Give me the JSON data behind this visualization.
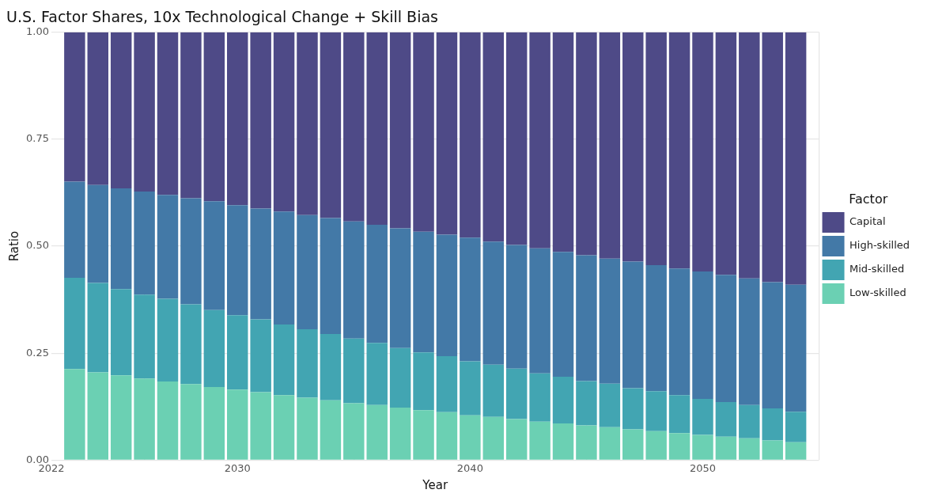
{
  "chart_data": {
    "type": "bar",
    "title": "U.S. Factor Shares, 10x Technological Change + Skill Bias",
    "xlabel": "Year",
    "ylabel": "Ratio",
    "legend_title": "Factor",
    "legend": "right",
    "stacked": true,
    "grid": true,
    "x": [
      2023,
      2024,
      2025,
      2026,
      2027,
      2028,
      2029,
      2030,
      2031,
      2032,
      2033,
      2034,
      2035,
      2036,
      2037,
      2038,
      2039,
      2040,
      2041,
      2042,
      2043,
      2044,
      2045,
      2046,
      2047,
      2048,
      2049,
      2050,
      2051,
      2052,
      2053,
      2054
    ],
    "xlim": [
      2022,
      2055
    ],
    "xticks": [
      2022,
      2030,
      2040,
      2050
    ],
    "ylim": [
      0,
      1
    ],
    "yticks": [
      {
        "value": 0,
        "label": "0.00"
      },
      {
        "value": 0.25,
        "label": "0.25"
      },
      {
        "value": 0.5,
        "label": "0.50"
      },
      {
        "value": 0.75,
        "label": "0.75"
      },
      {
        "value": 1,
        "label": "1.00"
      }
    ],
    "series": [
      {
        "name": "Low-skilled",
        "color": "#6bd0b3",
        "values": [
          0.213,
          0.205,
          0.198,
          0.191,
          0.184,
          0.178,
          0.171,
          0.165,
          0.159,
          0.152,
          0.146,
          0.14,
          0.133,
          0.129,
          0.123,
          0.117,
          0.112,
          0.105,
          0.101,
          0.096,
          0.09,
          0.086,
          0.081,
          0.077,
          0.072,
          0.068,
          0.063,
          0.059,
          0.055,
          0.051,
          0.046,
          0.042
        ]
      },
      {
        "name": "Mid-skilled",
        "color": "#42a5b2",
        "values": [
          0.213,
          0.209,
          0.202,
          0.196,
          0.193,
          0.186,
          0.18,
          0.174,
          0.17,
          0.165,
          0.16,
          0.155,
          0.151,
          0.145,
          0.139,
          0.135,
          0.131,
          0.126,
          0.122,
          0.118,
          0.113,
          0.109,
          0.104,
          0.102,
          0.096,
          0.093,
          0.089,
          0.084,
          0.081,
          0.078,
          0.075,
          0.071
        ]
      },
      {
        "name": "High-skilled",
        "color": "#4379a7",
        "values": [
          0.225,
          0.229,
          0.235,
          0.241,
          0.243,
          0.248,
          0.254,
          0.257,
          0.259,
          0.264,
          0.267,
          0.271,
          0.274,
          0.276,
          0.28,
          0.282,
          0.284,
          0.289,
          0.288,
          0.289,
          0.292,
          0.292,
          0.294,
          0.292,
          0.296,
          0.295,
          0.296,
          0.298,
          0.297,
          0.296,
          0.295,
          0.297
        ]
      },
      {
        "name": "Capital",
        "color": "#4e4a87",
        "values": [
          0.349,
          0.357,
          0.365,
          0.372,
          0.38,
          0.388,
          0.395,
          0.404,
          0.412,
          0.419,
          0.427,
          0.434,
          0.442,
          0.45,
          0.458,
          0.466,
          0.473,
          0.48,
          0.489,
          0.497,
          0.505,
          0.513,
          0.521,
          0.529,
          0.536,
          0.544,
          0.552,
          0.559,
          0.567,
          0.575,
          0.584,
          0.59
        ]
      }
    ]
  }
}
